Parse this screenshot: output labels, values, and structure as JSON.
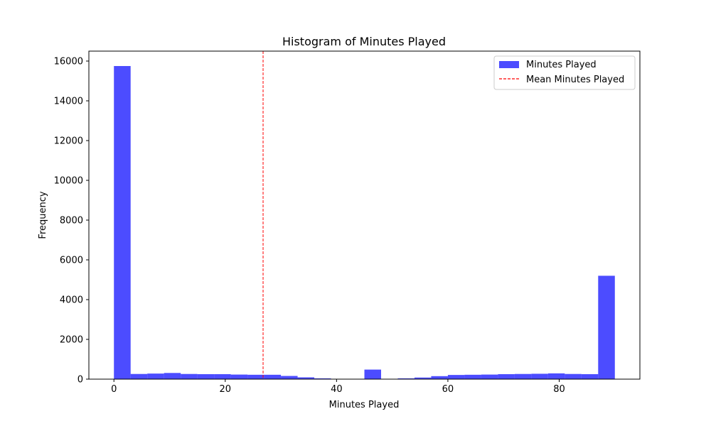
{
  "chart_data": {
    "type": "bar",
    "title": "Histogram of Minutes Played",
    "xlabel": "Minutes Played",
    "ylabel": "Frequency",
    "xlim": [
      -4.5,
      94.5
    ],
    "ylim": [
      0,
      16500
    ],
    "xticks": [
      0,
      20,
      40,
      60,
      80
    ],
    "xtick_labels": [
      "0",
      "20",
      "40",
      "60",
      "80"
    ],
    "yticks": [
      0,
      2000,
      4000,
      6000,
      8000,
      10000,
      12000,
      14000,
      16000
    ],
    "ytick_labels": [
      "0",
      "2000",
      "4000",
      "6000",
      "8000",
      "10000",
      "12000",
      "14000",
      "16000"
    ],
    "bin_edges": [
      0,
      3,
      6,
      9,
      12,
      15,
      18,
      21,
      24,
      27,
      30,
      33,
      36,
      39,
      42,
      45,
      48,
      51,
      54,
      57,
      60,
      63,
      66,
      69,
      72,
      75,
      78,
      81,
      84,
      87,
      90
    ],
    "series": [
      {
        "name": "Minutes Played",
        "values": [
          15750,
          260,
          280,
          310,
          260,
          250,
          250,
          230,
          220,
          220,
          160,
          90,
          40,
          5,
          5,
          480,
          5,
          40,
          80,
          150,
          210,
          220,
          230,
          250,
          260,
          270,
          290,
          260,
          250,
          5200
        ],
        "color": "#0000ff",
        "alpha": 0.7
      }
    ],
    "mean_line": {
      "name": "Mean Minutes Played",
      "x": 26.8,
      "color": "#ff0000",
      "style": "dashed"
    },
    "legend": {
      "placement": "top-right",
      "entries": [
        "Minutes Played",
        "Mean Minutes Played"
      ]
    },
    "grid": false
  }
}
